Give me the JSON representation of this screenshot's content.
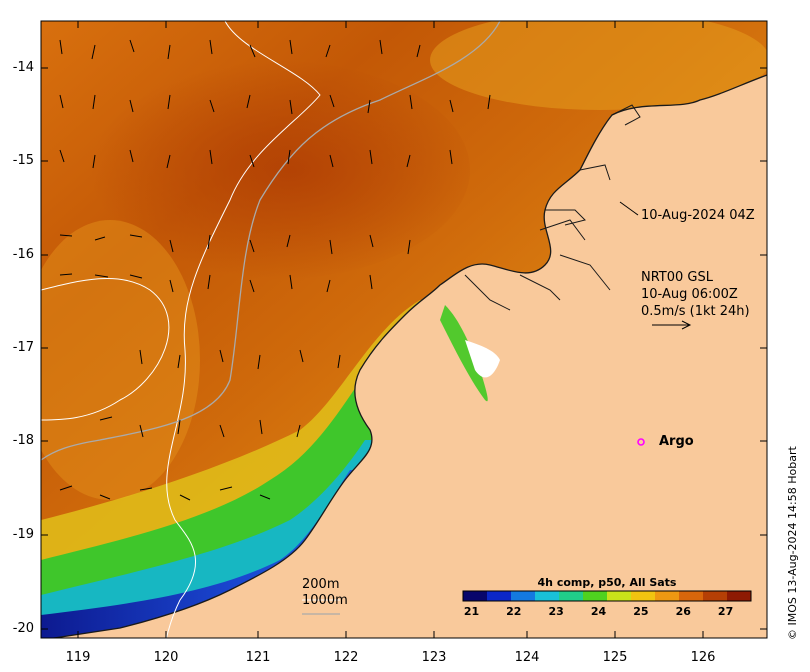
{
  "map": {
    "y_ticks": [
      "-14",
      "-15",
      "-16",
      "-17",
      "-18",
      "-19",
      "-20"
    ],
    "x_ticks": [
      "119",
      "120",
      "121",
      "122",
      "123",
      "124",
      "125",
      "126"
    ],
    "lon_range": [
      118.6,
      126.7
    ],
    "lat_range": [
      -13.5,
      -20.2
    ],
    "colors": {
      "land": "#f9c99b",
      "warm": "#c9630a",
      "hot": "#b54204",
      "mid": "#e48a12",
      "cool_yellow": "#e6e01a",
      "green": "#39c829",
      "cyan": "#15b4cc",
      "blue": "#0f3ac0",
      "navy": "#10188a"
    }
  },
  "annotations": {
    "timestamp": "10-Aug-2024 04Z",
    "current_source": "NRT00 GSL",
    "current_time": "10-Aug 06:00Z",
    "current_scale": "0.5m/s (1kt 24h)",
    "argo_label": "Argo",
    "depth_200": "200m",
    "depth_1000": "1000m"
  },
  "colorbar": {
    "title": "4h comp, p50, All Sats",
    "ticks": [
      "21",
      "22",
      "23",
      "24",
      "25",
      "26",
      "27"
    ],
    "range": [
      20.8,
      27.6
    ],
    "stops": [
      "#08066b",
      "#0b27c8",
      "#1479e0",
      "#19c0d8",
      "#21cc8a",
      "#4fd21f",
      "#c9e21a",
      "#f1c410",
      "#ee9812",
      "#d8660b",
      "#b53f05",
      "#8e1a03"
    ]
  },
  "credit": "© IMOS 13-Aug-2024 14:58 Hobart"
}
